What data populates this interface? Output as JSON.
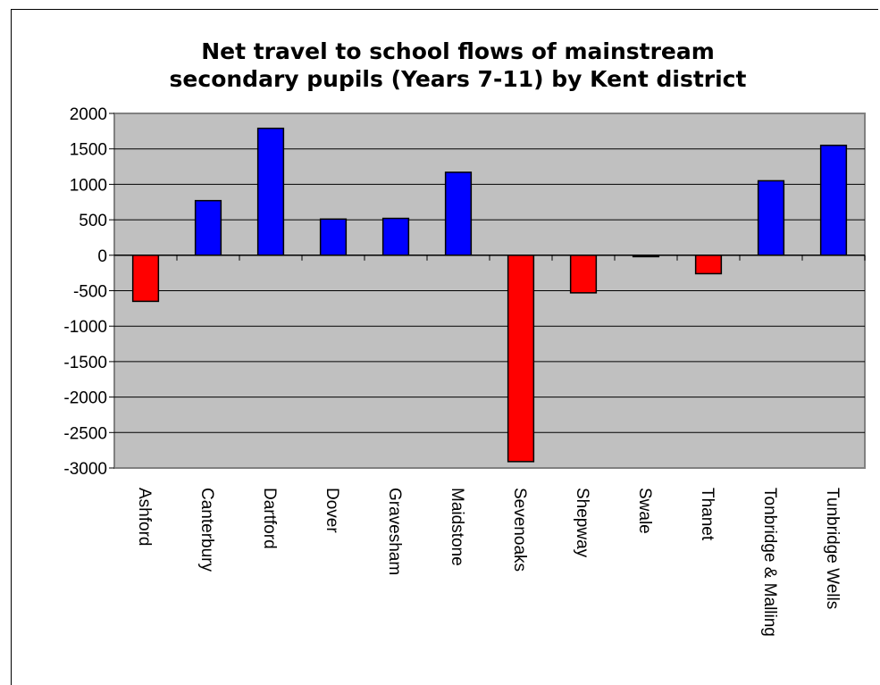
{
  "chart_data": {
    "type": "bar",
    "title_lines": [
      "Net travel to school flows of mainstream",
      "secondary pupils (Years 7-11) by Kent district"
    ],
    "categories": [
      "Ashford",
      "Canterbury",
      "Dartford",
      "Dover",
      "Gravesham",
      "Maidstone",
      "Sevenoaks",
      "Shepway",
      "Swale",
      "Thanet",
      "Tonbridge & Malling",
      "Tunbridge Wells"
    ],
    "values": [
      -650,
      770,
      1790,
      510,
      520,
      1170,
      -2910,
      -530,
      -20,
      -260,
      1050,
      1550
    ],
    "ylim": [
      -3000,
      2000
    ],
    "yticks": [
      "2000",
      "1500",
      "1000",
      "500",
      "0",
      "-500",
      "-1000",
      "-1500",
      "-2000",
      "-2500",
      "-3000"
    ],
    "ytick_values": [
      2000,
      1500,
      1000,
      500,
      0,
      -500,
      -1000,
      -1500,
      -2000,
      -2500,
      -3000
    ],
    "grid": true,
    "legend": "none",
    "colors": {
      "positive": "#0000ff",
      "negative": "#ff0000",
      "plot_bg": "#c0c0c0",
      "axis": "#000000"
    }
  }
}
